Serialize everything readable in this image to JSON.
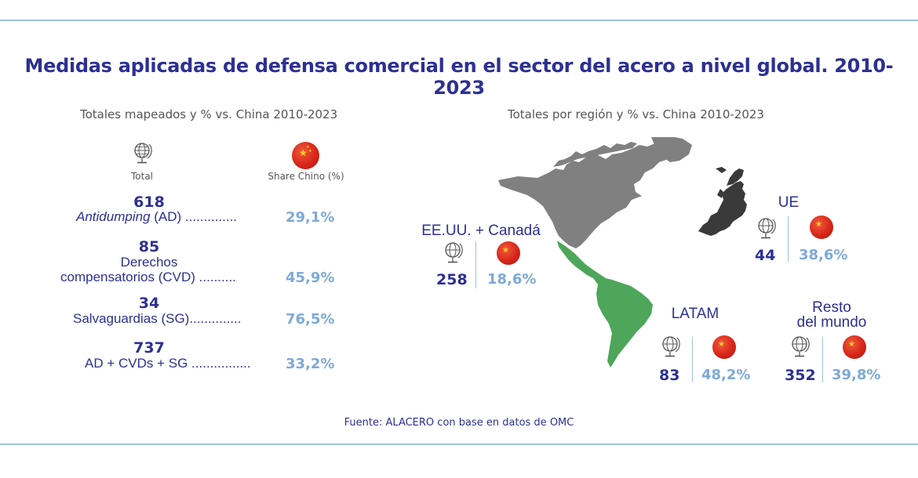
{
  "title": "Medidas aplicadas de defensa comercial en el sector del acero a nivel global. 2010-2023",
  "left_subtitle": "Totales mapeados y % vs. China 2010-2023",
  "right_subtitle": "Totales por región y % vs. China 2010-2023",
  "legend": {
    "total_label": "Total",
    "share_label": "Share Chino (%)"
  },
  "source": "Fuente: ALACERO con base en datos de OMC",
  "colors": {
    "title": "#2d3092",
    "percent": "#7ea9d8",
    "americas": "#808080",
    "latam": "#4ea65a",
    "europe": "#3a3a3a",
    "rule": "#9ec3dc"
  },
  "chart_data": [
    {
      "type": "table",
      "title": "Totales mapeados y % vs. China 2010-2023",
      "columns": [
        "Total",
        "Share Chino (%)"
      ],
      "rows": [
        {
          "total": "618",
          "label_em": "Antidumping",
          "label_rest": " (AD) ",
          "dots": "..............",
          "share": "29,1%"
        },
        {
          "total": "85",
          "label_line1": "Derechos",
          "label_line2": "compensatorios (CVD) ",
          "dots": "..........",
          "share": "45,9%"
        },
        {
          "total": "34",
          "label": "Salvaguardias (SG)",
          "dots": "..............",
          "share": "76,5%"
        },
        {
          "total": "737",
          "label": "AD + CVDs + SG ",
          "dots": "................",
          "share": "33,2%"
        }
      ]
    },
    {
      "type": "table",
      "title": "Totales por región y % vs. China 2010-2023",
      "regions": [
        {
          "name": "EE.UU. + Canadá",
          "total": "258",
          "share": "18,6%"
        },
        {
          "name": "UE",
          "total": "44",
          "share": "38,6%"
        },
        {
          "name": "LATAM",
          "total": "83",
          "share": "48,2%"
        },
        {
          "name_line1": "Resto",
          "name_line2": "del mundo",
          "total": "352",
          "share": "39,8%"
        }
      ]
    }
  ]
}
